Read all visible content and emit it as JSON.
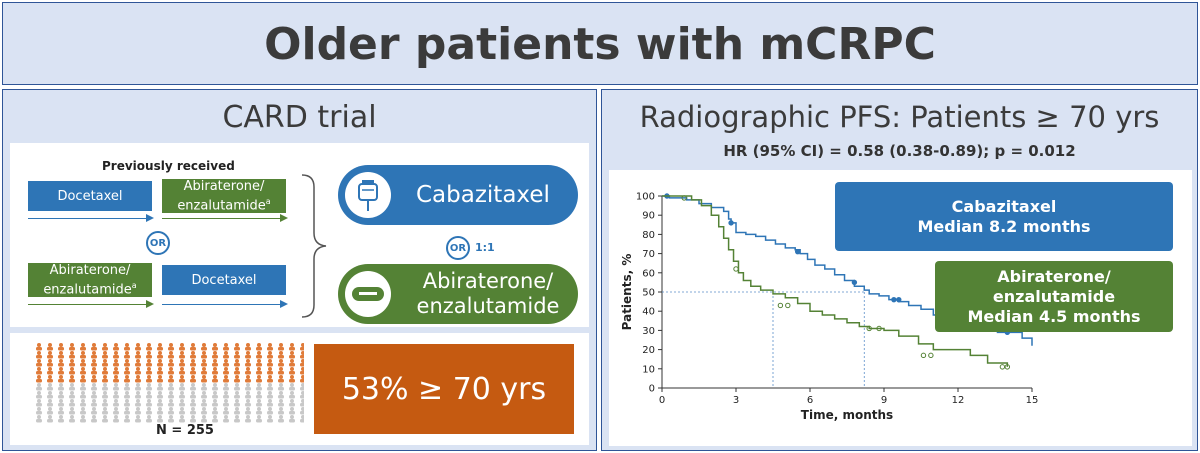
{
  "title": "Older patients with mCRPC",
  "left": {
    "title": "CARD trial",
    "previously_received": "Previously received",
    "seq1": {
      "first": "Docetaxel",
      "second": "Abiraterone/",
      "second2": "enzalutamide",
      "second_sup": "a"
    },
    "or_label": "OR",
    "seq2": {
      "first": "Abiraterone/",
      "first2": "enzalutamide",
      "first_sup": "a",
      "second": "Docetaxel"
    },
    "arm1": "Cabazitaxel",
    "arm2_line1": "Abiraterone/",
    "arm2_line2": "enzalutamide",
    "ratio": "1:1",
    "population": {
      "rows": 10,
      "cols": 25,
      "highlight_rows": 5,
      "highlight_color": "#e07b39",
      "other_color": "#c8c8c8",
      "n_label": "N = 255"
    },
    "highlight_text": "53% ≥ 70 yrs"
  },
  "right": {
    "title": "Radiographic PFS: Patients ≥ 70 yrs",
    "subtitle": "HR (95% CI) = 0.58 (0.38-0.89); p = 0.012",
    "legend_caba": {
      "line1": "Cabazitaxel",
      "line2": "Median 8.2 months"
    },
    "legend_abi": {
      "line1": "Abiraterone/",
      "line2": "enzalutamide",
      "line3": "Median 4.5 months"
    }
  },
  "colors": {
    "blue": "#2e75b6",
    "green": "#548235",
    "orange": "#c55a11",
    "panel": "#dae3f3",
    "border": "#2f5597"
  },
  "chart_data": {
    "type": "line",
    "xlabel": "Time, months",
    "ylabel": "Patients, %",
    "xlim": [
      0,
      15
    ],
    "ylim": [
      0,
      100
    ],
    "xticks": [
      0,
      3,
      6,
      9,
      12,
      15
    ],
    "yticks": [
      0,
      10,
      20,
      30,
      40,
      50,
      60,
      70,
      80,
      90,
      100
    ],
    "median_line_y": 50,
    "medians": [
      8.2,
      4.5
    ],
    "series": [
      {
        "name": "Cabazitaxel",
        "color": "#2e75b6",
        "x": [
          0,
          0.3,
          1.0,
          1.5,
          2.0,
          2.5,
          2.7,
          2.8,
          3.0,
          3.4,
          3.8,
          4.2,
          4.6,
          5.0,
          5.4,
          5.6,
          5.9,
          6.2,
          6.6,
          7.0,
          7.4,
          7.8,
          8.2,
          8.4,
          8.8,
          9.2,
          9.6,
          10.0,
          10.5,
          11.0,
          11.6,
          12.2,
          12.8,
          13.6,
          14.6,
          15.0
        ],
        "y": [
          100,
          99,
          98,
          96,
          94,
          92,
          88,
          86,
          81,
          80,
          79,
          77,
          75,
          73,
          72,
          70,
          67,
          64,
          62,
          59,
          56,
          53,
          51,
          49,
          48,
          46,
          45,
          43,
          41,
          38,
          35,
          33,
          31,
          29,
          26,
          22
        ],
        "censor_x": [
          0.2,
          2.8,
          5.5,
          7.8,
          9.4,
          9.6,
          12.4,
          14.0
        ],
        "censor_y": [
          100,
          86,
          71,
          55,
          46,
          46,
          31,
          29
        ]
      },
      {
        "name": "Abiraterone/enzalutamide",
        "color": "#548235",
        "x": [
          0,
          1.2,
          1.6,
          2.0,
          2.3,
          2.5,
          2.7,
          2.9,
          3.1,
          3.3,
          3.6,
          4.0,
          4.5,
          5.0,
          5.5,
          6.0,
          6.5,
          7.0,
          7.5,
          8.0,
          8.4,
          9.0,
          9.6,
          10.4,
          11.0,
          12.5,
          13.2,
          14.0
        ],
        "y": [
          100,
          98,
          95,
          90,
          84,
          78,
          72,
          66,
          60,
          56,
          53,
          51,
          49,
          47,
          44,
          40,
          38,
          36,
          34,
          32,
          31,
          30,
          27,
          23,
          20,
          17,
          13,
          11
        ],
        "censor_x": [
          0.9,
          3.0,
          4.8,
          5.1,
          8.4,
          8.8,
          10.6,
          10.9,
          13.8,
          14.0
        ],
        "censor_y": [
          99,
          62,
          43,
          43,
          31,
          31,
          17,
          17,
          11,
          11
        ]
      }
    ]
  }
}
